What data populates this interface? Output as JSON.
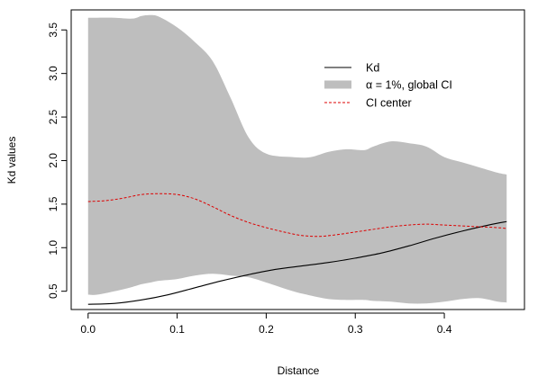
{
  "chart_data": {
    "type": "line",
    "xlabel": "Distance",
    "ylabel": "Kd values",
    "xlim": [
      -0.019,
      0.49
    ],
    "ylim": [
      0.29,
      3.73
    ],
    "xticks": [
      0.0,
      0.1,
      0.2,
      0.3,
      0.4
    ],
    "xtick_labels": [
      "0.0",
      "0.1",
      "0.2",
      "0.3",
      "0.4"
    ],
    "yticks": [
      0.5,
      1.0,
      1.5,
      2.0,
      2.5,
      3.0,
      3.5
    ],
    "ytick_labels": [
      "0.5",
      "1.0",
      "1.5",
      "2.0",
      "2.5",
      "3.0",
      "3.5"
    ],
    "grid": false,
    "legend_position": "top-right",
    "colors": {
      "kd": "#000000",
      "ci_band": "#bebebe",
      "ci_center": "#dd0000"
    },
    "series": [
      {
        "name": "Kd",
        "style": "solid",
        "x": [
          0.0,
          0.03,
          0.06,
          0.09,
          0.12,
          0.15,
          0.18,
          0.21,
          0.24,
          0.27,
          0.3,
          0.33,
          0.36,
          0.39,
          0.42,
          0.45,
          0.47
        ],
        "values": [
          0.35,
          0.36,
          0.4,
          0.46,
          0.54,
          0.62,
          0.69,
          0.75,
          0.79,
          0.83,
          0.88,
          0.94,
          1.02,
          1.11,
          1.19,
          1.26,
          1.3
        ]
      },
      {
        "name": "α = 1%, global CI",
        "style": "band",
        "x": [
          0.0,
          0.01,
          0.03,
          0.05,
          0.06,
          0.07,
          0.08,
          0.1,
          0.12,
          0.14,
          0.16,
          0.18,
          0.2,
          0.23,
          0.25,
          0.27,
          0.29,
          0.31,
          0.32,
          0.34,
          0.36,
          0.38,
          0.4,
          0.42,
          0.44,
          0.46,
          0.47
        ],
        "upper": [
          3.64,
          3.64,
          3.64,
          3.63,
          3.66,
          3.67,
          3.65,
          3.53,
          3.36,
          3.14,
          2.72,
          2.27,
          2.08,
          2.04,
          2.04,
          2.1,
          2.13,
          2.12,
          2.16,
          2.22,
          2.2,
          2.16,
          2.04,
          1.98,
          1.92,
          1.86,
          1.84
        ],
        "lower": [
          0.46,
          0.46,
          0.5,
          0.55,
          0.58,
          0.6,
          0.62,
          0.64,
          0.68,
          0.7,
          0.68,
          0.66,
          0.6,
          0.5,
          0.45,
          0.41,
          0.4,
          0.4,
          0.39,
          0.38,
          0.36,
          0.36,
          0.38,
          0.41,
          0.42,
          0.38,
          0.37
        ]
      },
      {
        "name": "CI center",
        "style": "dashed",
        "x": [
          0.0,
          0.02,
          0.04,
          0.06,
          0.08,
          0.1,
          0.12,
          0.14,
          0.16,
          0.18,
          0.2,
          0.22,
          0.24,
          0.26,
          0.28,
          0.3,
          0.32,
          0.34,
          0.36,
          0.38,
          0.4,
          0.42,
          0.44,
          0.46,
          0.47
        ],
        "values": [
          1.53,
          1.54,
          1.57,
          1.61,
          1.62,
          1.61,
          1.56,
          1.47,
          1.37,
          1.29,
          1.23,
          1.18,
          1.14,
          1.13,
          1.15,
          1.18,
          1.21,
          1.24,
          1.26,
          1.27,
          1.26,
          1.25,
          1.24,
          1.23,
          1.22
        ]
      }
    ]
  }
}
